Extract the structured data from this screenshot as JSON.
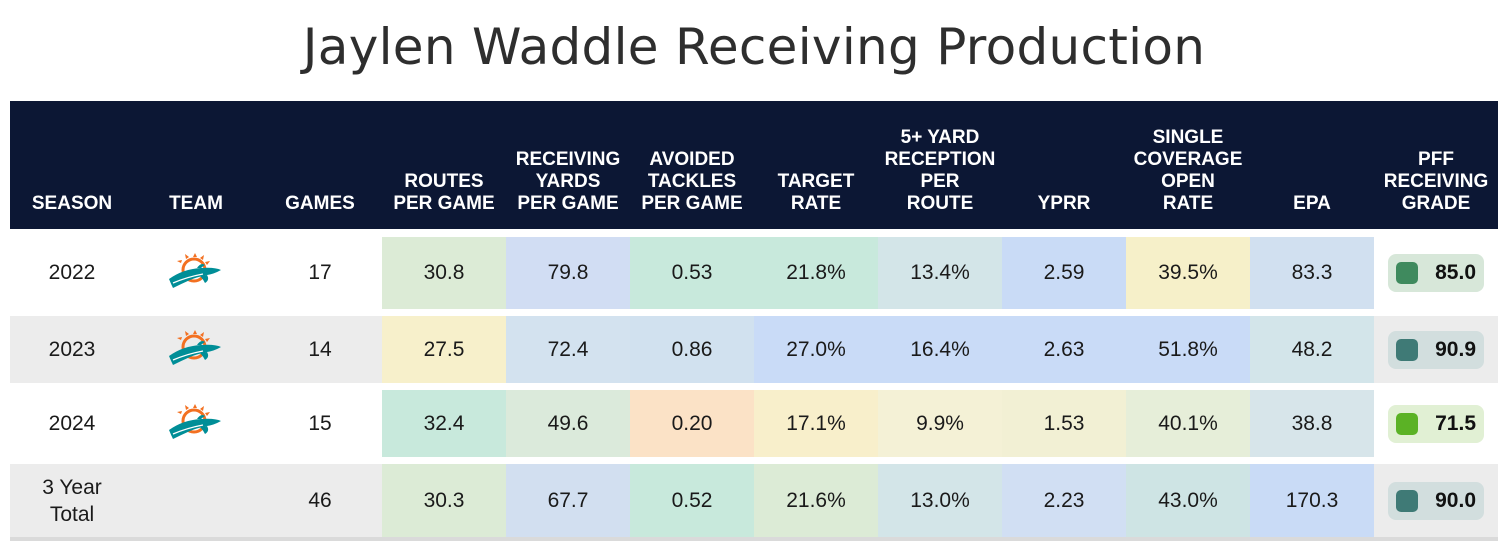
{
  "title": "Jaylen Waddle Receiving Production",
  "columns": {
    "season": "SEASON",
    "team": "TEAM",
    "games": "GAMES",
    "routes": [
      "ROUTES",
      "PER GAME"
    ],
    "rec_yards": [
      "RECEIVING",
      "YARDS",
      "PER GAME"
    ],
    "avoided": [
      "AVOIDED",
      "TACKLES",
      "PER GAME"
    ],
    "target_rate": [
      "TARGET",
      "RATE"
    ],
    "five_plus": [
      "5+ YARD",
      "RECEPTION",
      "PER",
      "ROUTE"
    ],
    "yprr": "YPRR",
    "single_cov": [
      "SINGLE",
      "COVERAGE",
      "OPEN",
      "RATE"
    ],
    "epa": "EPA",
    "grade": [
      "PFF",
      "RECEIVING",
      "GRADE"
    ]
  },
  "rows": [
    {
      "season": "2022",
      "team_icon": "miami-dolphins-logo-icon",
      "games": "17",
      "routes": "30.8",
      "rec_yards": "79.8",
      "avoided": "0.53",
      "target_rate": "21.8%",
      "five_plus": "13.4%",
      "yprr": "2.59",
      "single_cov": "39.5%",
      "epa": "83.3",
      "grade": "85.0"
    },
    {
      "season": "2023",
      "team_icon": "miami-dolphins-logo-icon",
      "games": "14",
      "routes": "27.5",
      "rec_yards": "72.4",
      "avoided": "0.86",
      "target_rate": "27.0%",
      "five_plus": "16.4%",
      "yprr": "2.63",
      "single_cov": "51.8%",
      "epa": "48.2",
      "grade": "90.9"
    },
    {
      "season": "2024",
      "team_icon": "miami-dolphins-logo-icon",
      "games": "15",
      "routes": "32.4",
      "rec_yards": "49.6",
      "avoided": "0.20",
      "target_rate": "17.1%",
      "five_plus": "9.9%",
      "yprr": "1.53",
      "single_cov": "40.1%",
      "epa": "38.8",
      "grade": "71.5"
    },
    {
      "season_lines": [
        "3 Year",
        "Total"
      ],
      "games": "46",
      "routes": "30.3",
      "rec_yards": "67.7",
      "avoided": "0.52",
      "target_rate": "21.6%",
      "five_plus": "13.0%",
      "yprr": "2.23",
      "single_cov": "43.0%",
      "epa": "170.3",
      "grade": "90.0"
    }
  ],
  "cell_colors": [
    [
      "#dcebd6",
      "#d1ddf3",
      "#c8e9dc",
      "#c8e9dc",
      "#d3e5e8",
      "#c9dbf6",
      "#f6f0c9",
      "#d1e0f0"
    ],
    [
      "#f7f0cb",
      "#d3e2ef",
      "#d1e1ef",
      "#c9dbf7",
      "#c9dbf7",
      "#c9dbf7",
      "#c9dbf7",
      "#d3e5ea"
    ],
    [
      "#c8e9dc",
      "#dbeadb",
      "#fbe2c6",
      "#f8efcb",
      "#f4f1d6",
      "#f2f0d4",
      "#e6eed9",
      "#d7e5ea"
    ],
    [
      "#dcebd6",
      "#d2dff0",
      "#c8e9dc",
      "#dcebd6",
      "#d3e5e8",
      "#d1dff3",
      "#cee4e4",
      "#c9dbf6"
    ]
  ],
  "grade_pills": [
    {
      "bg": "#d7e7d9",
      "square": "#3f8a5e"
    },
    {
      "bg": "#d2dede",
      "square": "#3f7a76"
    },
    {
      "bg": "#e1f0d4",
      "square": "#5bb225"
    },
    {
      "bg": "#d2dede",
      "square": "#3f7a76"
    }
  ],
  "row_backgrounds": [
    "#ffffff",
    "#ececec",
    "#ffffff",
    "#ececec"
  ],
  "chart_data": {
    "type": "table",
    "title": "Jaylen Waddle Receiving Production",
    "headers": [
      "SEASON",
      "TEAM",
      "GAMES",
      "ROUTES PER GAME",
      "RECEIVING YARDS PER GAME",
      "AVOIDED TACKLES PER GAME",
      "TARGET RATE",
      "5+ YARD RECEPTION PER ROUTE",
      "YPRR",
      "SINGLE COVERAGE OPEN RATE",
      "EPA",
      "PFF RECEIVING GRADE"
    ],
    "rows": [
      [
        "2022",
        "MIA",
        "17",
        "30.8",
        "79.8",
        "0.53",
        "21.8%",
        "13.4%",
        "2.59",
        "39.5%",
        "83.3",
        "85.0"
      ],
      [
        "2023",
        "MIA",
        "14",
        "27.5",
        "72.4",
        "0.86",
        "27.0%",
        "16.4%",
        "2.63",
        "51.8%",
        "48.2",
        "90.9"
      ],
      [
        "2024",
        "MIA",
        "15",
        "32.4",
        "49.6",
        "0.20",
        "17.1%",
        "9.9%",
        "1.53",
        "40.1%",
        "38.8",
        "71.5"
      ],
      [
        "3 Year Total",
        "",
        "46",
        "30.3",
        "67.7",
        "0.52",
        "21.6%",
        "13.0%",
        "2.23",
        "43.0%",
        "170.3",
        "90.0"
      ]
    ]
  }
}
